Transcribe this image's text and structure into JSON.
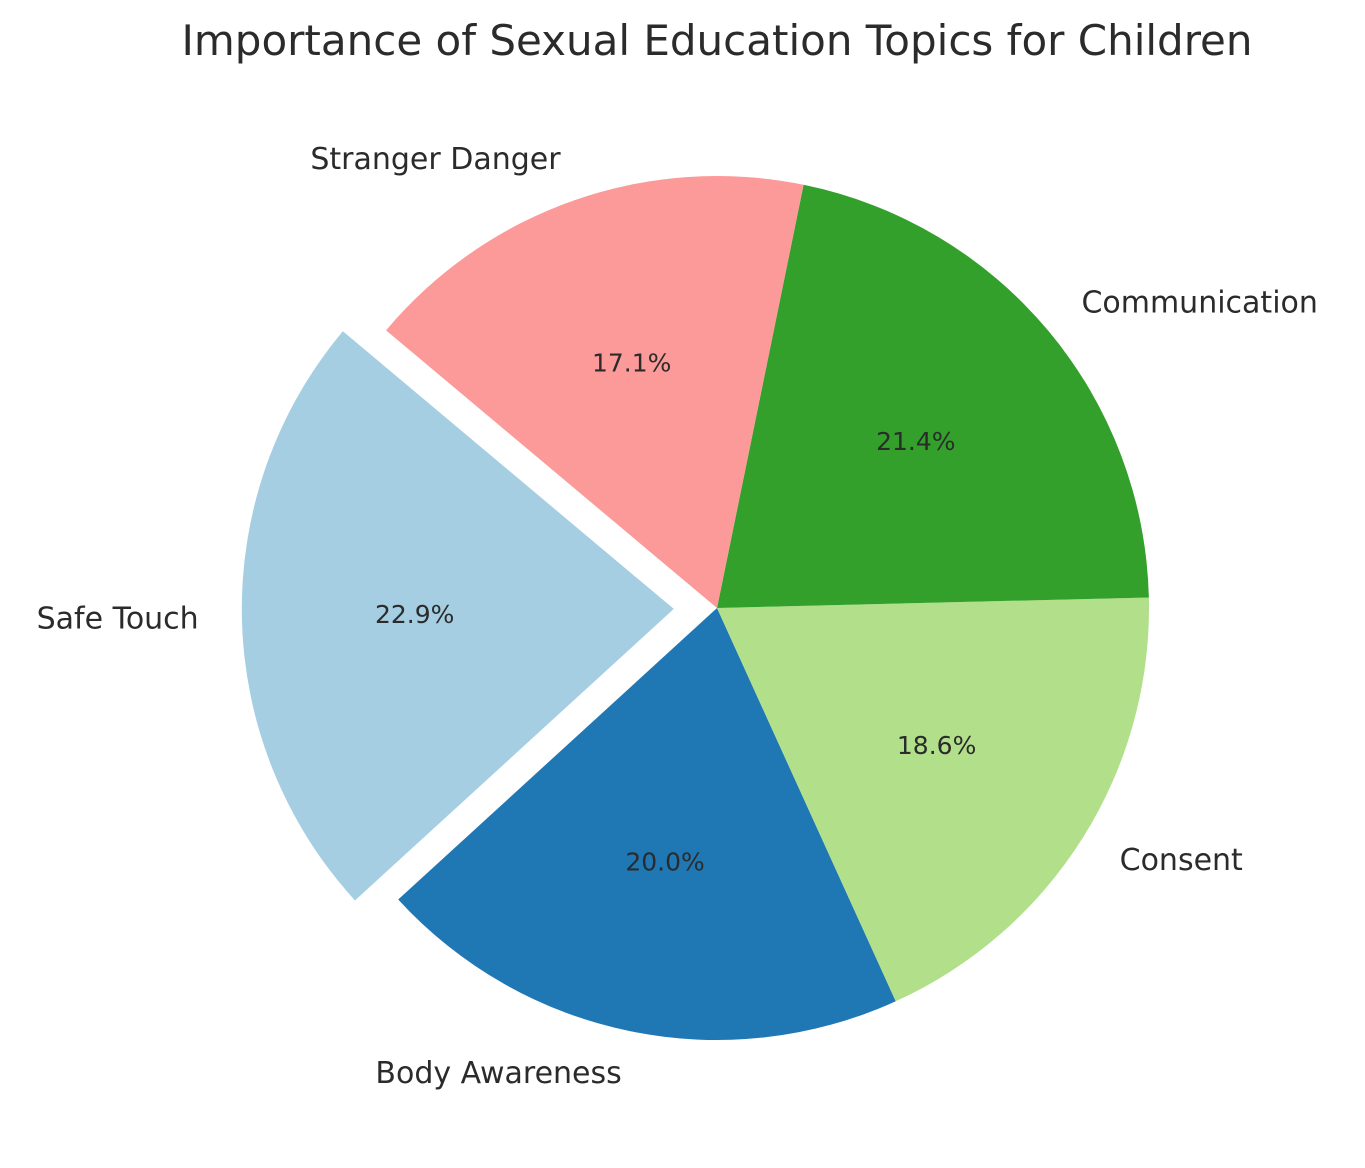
{
  "chart_data": {
    "type": "pie",
    "title": "Importance of Sexual Education Topics for Children",
    "start_angle_deg": 140,
    "direction": "counterclockwise",
    "slices": [
      {
        "label": "Safe Touch",
        "value": 22.9,
        "pct_label": "22.9%",
        "color": "#a6cee3",
        "explode": 0.1
      },
      {
        "label": "Body Awareness",
        "value": 20.0,
        "pct_label": "20.0%",
        "color": "#1f78b4",
        "explode": 0
      },
      {
        "label": "Consent",
        "value": 18.6,
        "pct_label": "18.6%",
        "color": "#b2df8a",
        "explode": 0
      },
      {
        "label": "Communication",
        "value": 21.4,
        "pct_label": "21.4%",
        "color": "#33a02c",
        "explode": 0
      },
      {
        "label": "Stranger Danger",
        "value": 17.1,
        "pct_label": "17.1%",
        "color": "#fb9a99",
        "explode": 0
      }
    ]
  }
}
